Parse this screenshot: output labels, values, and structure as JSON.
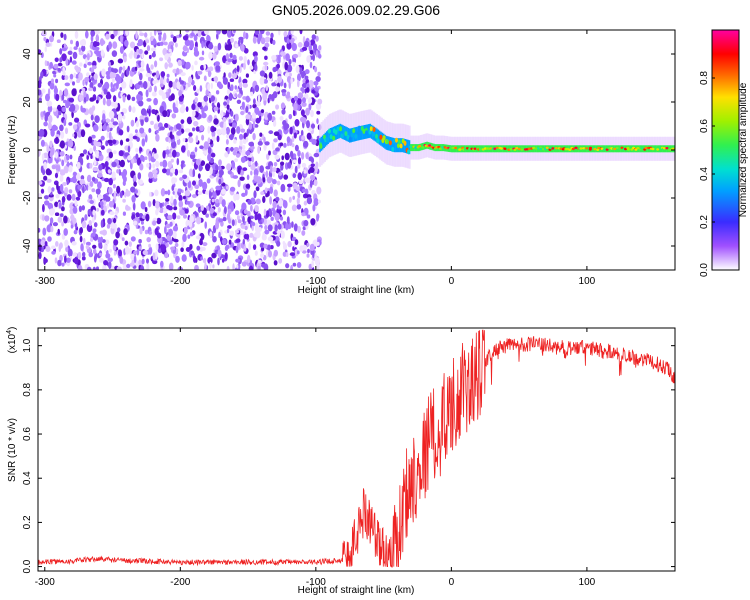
{
  "title": "GN05.2026.009.02.29.G06",
  "colors": {
    "trace": "#ee2222",
    "noise": "#6a1fe0",
    "axis": "#000000"
  },
  "chart_data": [
    {
      "type": "heatmap",
      "name": "spectrogram",
      "xlabel": "Height of straight line (km)",
      "ylabel": "Frequency (Hz)",
      "xlim": [
        -305,
        165
      ],
      "ylim": [
        -50,
        50
      ],
      "xticks": [
        -300,
        -200,
        -100,
        0,
        100
      ],
      "xtick_labels": [
        "-300",
        "-200",
        "-100",
        "0",
        "100"
      ],
      "yticks": [
        -40,
        -20,
        0,
        20,
        40
      ],
      "ytick_labels": [
        "-40",
        "-20",
        "0",
        "20",
        "40"
      ],
      "noise_region_x": [
        -305,
        -97
      ],
      "ridge": {
        "x": [
          -97,
          -90,
          -82,
          -75,
          -68,
          -60,
          -55,
          -48,
          -42,
          -36,
          -30,
          -24,
          -18,
          -12,
          -6,
          0,
          20,
          40,
          60,
          80,
          100,
          120,
          140,
          165
        ],
        "y": [
          2,
          6,
          8,
          6,
          7,
          8,
          6,
          3,
          2,
          2,
          1,
          1,
          2,
          1,
          1,
          0.5,
          0.5,
          0.5,
          0.5,
          0.5,
          0.5,
          0.5,
          0.5,
          0.5
        ]
      },
      "colorbar": {
        "label": "Normalized spectral amplitude",
        "range": [
          0,
          1
        ],
        "ticks": [
          0.0,
          0.2,
          0.4,
          0.6,
          0.8
        ],
        "tick_labels": [
          "0.0",
          "0.2",
          "0.4",
          "0.6",
          "0.8"
        ]
      }
    },
    {
      "type": "line",
      "name": "snr",
      "xlabel": "Height of straight line (km)",
      "ylabel": "SNR (10 * v/v)",
      "scale_label": "(x10",
      "scale_exponent": "4",
      "scale_suffix": ")",
      "xlim": [
        -305,
        165
      ],
      "ylim": [
        -0.02,
        1.08
      ],
      "xticks": [
        -300,
        -200,
        -100,
        0,
        100
      ],
      "xtick_labels": [
        "-300",
        "-200",
        "-100",
        "0",
        "100"
      ],
      "yticks": [
        0.0,
        0.2,
        0.4,
        0.6,
        0.8,
        1.0
      ],
      "ytick_labels": [
        "0.0",
        "0.2",
        "0.4",
        "0.6",
        "0.8",
        "1.0"
      ],
      "series": [
        {
          "name": "SNR",
          "x": [
            -305,
            -280,
            -260,
            -250,
            -230,
            -200,
            -150,
            -100,
            -80,
            -75,
            -70,
            -65,
            -60,
            -55,
            -50,
            -45,
            -40,
            -35,
            -30,
            -25,
            -20,
            -15,
            -10,
            -5,
            0,
            5,
            10,
            15,
            20,
            25,
            30,
            40,
            60,
            80,
            100,
            120,
            140,
            160,
            165
          ],
          "y": [
            0.02,
            0.025,
            0.035,
            0.03,
            0.025,
            0.02,
            0.02,
            0.02,
            0.03,
            0.05,
            0.14,
            0.25,
            0.22,
            0.12,
            0.06,
            0.03,
            0.08,
            0.3,
            0.38,
            0.45,
            0.5,
            0.62,
            0.55,
            0.7,
            0.72,
            0.78,
            0.8,
            0.82,
            0.86,
            0.92,
            0.97,
            1.0,
            1.01,
            0.99,
            0.99,
            0.97,
            0.94,
            0.9,
            0.85
          ]
        }
      ]
    }
  ]
}
